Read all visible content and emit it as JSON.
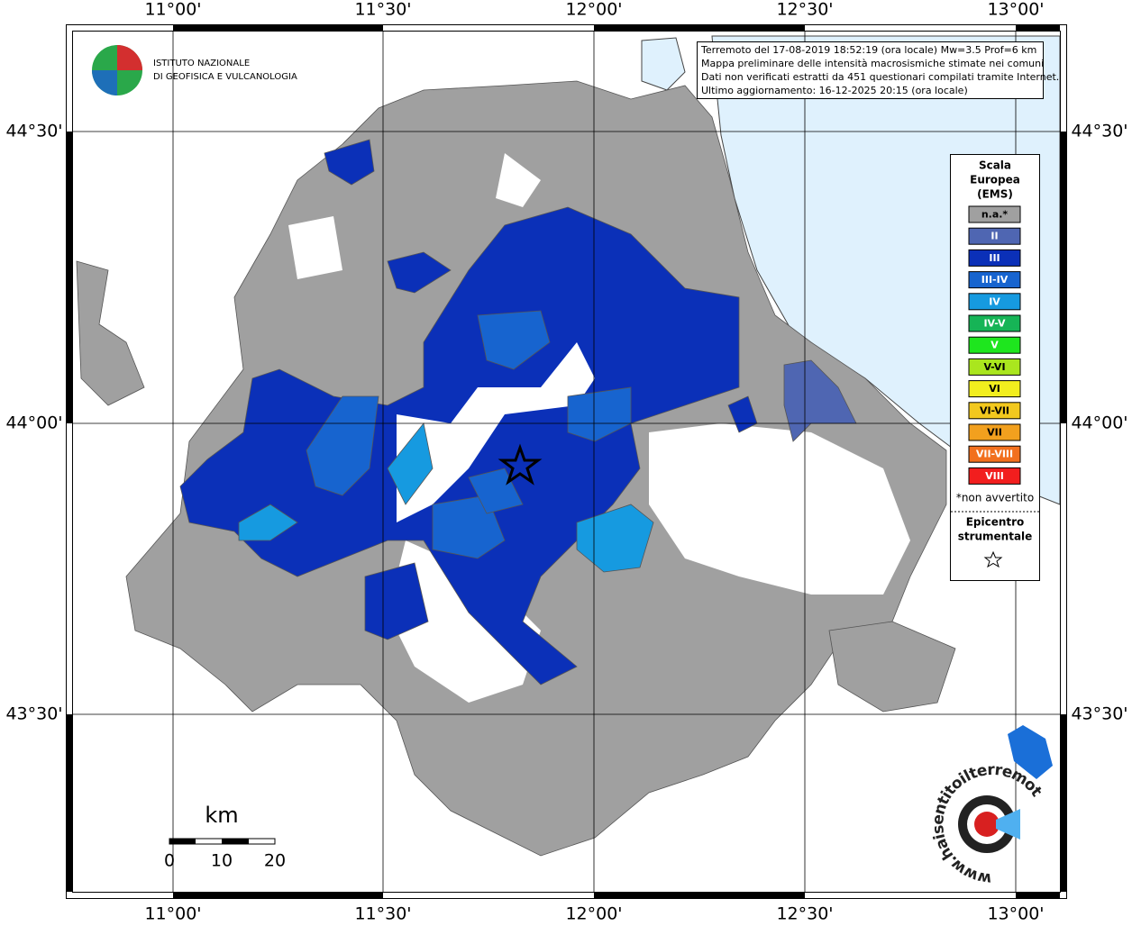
{
  "header": {
    "institute": [
      "ISTITUTO NAZIONALE",
      "DI GEOFISICA E VULCANOLOGIA"
    ],
    "info": [
      "Terremoto del 17-08-2019 18:52:19 (ora locale) Mw=3.5 Prof=6 km",
      "Mappa preliminare delle intensità macrosismiche stimate nei comuni",
      "Dati non verificati estratti da 451 questionari compilati tramite Internet.",
      "Ultimo aggiornamento: 16-12-2025 20:15 (ora locale)"
    ]
  },
  "map": {
    "lon_labels": [
      "11°00'",
      "11°30'",
      "12°00'",
      "12°30'",
      "13°00'"
    ],
    "lat_labels": [
      "44°30'",
      "44°00'",
      "43°30'"
    ]
  },
  "legend": {
    "title": [
      "Scala",
      "Europea",
      "(EMS)"
    ],
    "items": [
      {
        "label": "n.a.*",
        "color": "#a0a0a0"
      },
      {
        "label": "II",
        "color": "#4f66b2"
      },
      {
        "label": "III",
        "color": "#0b30b8"
      },
      {
        "label": "III-IV",
        "color": "#1764cf"
      },
      {
        "label": "IV",
        "color": "#169ae0"
      },
      {
        "label": "IV-V",
        "color": "#16b456"
      },
      {
        "label": "V",
        "color": "#1ee61e"
      },
      {
        "label": "V-VI",
        "color": "#aae61e"
      },
      {
        "label": "VI",
        "color": "#f2ee1e"
      },
      {
        "label": "VI-VII",
        "color": "#f2c81e"
      },
      {
        "label": "VII",
        "color": "#f2a01e"
      },
      {
        "label": "VII-VIII",
        "color": "#f2701e"
      },
      {
        "label": "VIII",
        "color": "#f21e1e"
      }
    ],
    "note": "*non avvertito",
    "epicenter": [
      "Epicentro",
      "strumentale"
    ]
  },
  "scale_bar": {
    "unit": "km",
    "labels": [
      "0",
      "10",
      "20"
    ]
  },
  "footer_logo": "www.haisentitoilterremoto.it"
}
